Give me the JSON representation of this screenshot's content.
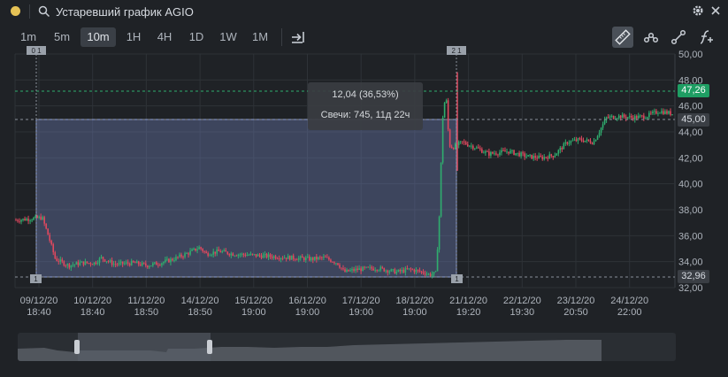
{
  "window": {
    "title": "Устаревший график AGIO"
  },
  "timeframes": [
    "1m",
    "5m",
    "10m",
    "1H",
    "4H",
    "1D",
    "1W",
    "1M"
  ],
  "active_timeframe": "10m",
  "tools": [
    {
      "name": "ruler-tool",
      "active": true
    },
    {
      "name": "chain-tool",
      "active": false
    },
    {
      "name": "trendline-tool",
      "active": false
    },
    {
      "name": "function-add-tool",
      "active": false
    }
  ],
  "tooltip": {
    "change": "12,04 (36,53%)",
    "candles": "Свечи: 745, 11д 22ч"
  },
  "markers": {
    "left_label": "0 1",
    "right_label": "2 1",
    "left_flag": "1",
    "right_flag": "1"
  },
  "price_badges": [
    {
      "value": "47,26",
      "color": "#1e9e63",
      "text_color": "#ffffff"
    },
    {
      "value": "45,00",
      "color": "#3a3e44",
      "text_color": "#d6dae0"
    },
    {
      "value": "32,96",
      "color": "#3a3e44",
      "text_color": "#d6dae0"
    }
  ],
  "colors": {
    "up": "#2fae6e",
    "down": "#e0485e",
    "selection": "#6e7fb8",
    "dashed": "#8a9099",
    "green_dashed": "#2fae6e"
  },
  "chart_data": {
    "type": "candlestick",
    "symbol": "AGIO",
    "y_ticks": [
      32,
      34,
      36,
      38,
      40,
      42,
      44,
      46,
      48,
      50
    ],
    "y_tick_labels": [
      "32,00",
      "34,00",
      "36,00",
      "38,00",
      "40,00",
      "42,00",
      "44,00",
      "46,00",
      "48,00",
      "50,00"
    ],
    "ylim": [
      32,
      50
    ],
    "x_labels": [
      {
        "date": "09/12/20",
        "time": "18:40"
      },
      {
        "date": "10/12/20",
        "time": "18:40"
      },
      {
        "date": "11/12/20",
        "time": "18:50"
      },
      {
        "date": "14/12/20",
        "time": "18:50"
      },
      {
        "date": "15/12/20",
        "time": "19:00"
      },
      {
        "date": "16/12/20",
        "time": "19:00"
      },
      {
        "date": "17/12/20",
        "time": "19:00"
      },
      {
        "date": "18/12/20",
        "time": "19:00"
      },
      {
        "date": "21/12/20",
        "time": "19:20"
      },
      {
        "date": "22/12/20",
        "time": "19:30"
      },
      {
        "date": "23/12/20",
        "time": "20:50"
      },
      {
        "date": "24/12/20",
        "time": "22:00"
      }
    ],
    "price_path": [
      [
        0,
        37.2
      ],
      [
        0.02,
        37.3
      ],
      [
        0.04,
        37.4
      ],
      [
        0.05,
        35.9
      ],
      [
        0.06,
        34.2
      ],
      [
        0.08,
        33.7
      ],
      [
        0.1,
        33.9
      ],
      [
        0.12,
        33.9
      ],
      [
        0.13,
        34.3
      ],
      [
        0.15,
        33.8
      ],
      [
        0.18,
        33.9
      ],
      [
        0.2,
        33.7
      ],
      [
        0.22,
        33.9
      ],
      [
        0.24,
        34.2
      ],
      [
        0.26,
        34.6
      ],
      [
        0.28,
        35.1
      ],
      [
        0.29,
        34.6
      ],
      [
        0.31,
        34.8
      ],
      [
        0.33,
        34.6
      ],
      [
        0.36,
        34.5
      ],
      [
        0.39,
        34.4
      ],
      [
        0.42,
        34.3
      ],
      [
        0.45,
        34.2
      ],
      [
        0.47,
        34.3
      ],
      [
        0.49,
        33.9
      ],
      [
        0.5,
        33.2
      ],
      [
        0.52,
        33.4
      ],
      [
        0.55,
        33.5
      ],
      [
        0.58,
        33.2
      ],
      [
        0.6,
        33.4
      ],
      [
        0.62,
        33.2
      ],
      [
        0.63,
        33.0
      ],
      [
        0.64,
        33.1
      ],
      [
        0.645,
        37.5
      ],
      [
        0.65,
        45.0
      ],
      [
        0.655,
        47.0
      ],
      [
        0.66,
        43.0
      ],
      [
        0.665,
        42.8
      ],
      [
        0.68,
        43.2
      ],
      [
        0.7,
        42.8
      ],
      [
        0.72,
        42.3
      ],
      [
        0.75,
        42.5
      ],
      [
        0.78,
        42.1
      ],
      [
        0.8,
        42.0
      ],
      [
        0.82,
        42.2
      ],
      [
        0.84,
        43.2
      ],
      [
        0.86,
        43.4
      ],
      [
        0.88,
        43.2
      ],
      [
        0.9,
        45.1
      ],
      [
        0.92,
        45.2
      ],
      [
        0.94,
        45.1
      ],
      [
        0.96,
        45.2
      ],
      [
        0.98,
        45.6
      ],
      [
        1.0,
        45.4
      ]
    ],
    "ruler": {
      "from_price": 32.96,
      "to_price": 45.0,
      "change": "12,04 (36,53%)"
    },
    "horizontal_lines": [
      47.26,
      45.0,
      32.96
    ]
  }
}
